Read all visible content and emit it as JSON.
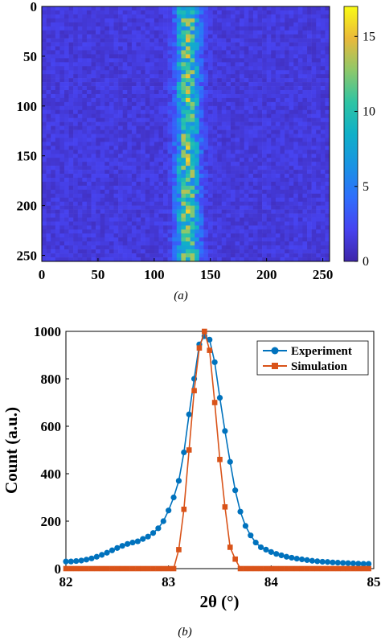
{
  "chart_data": [
    {
      "type": "heatmap",
      "caption": "a",
      "caption_text": "(a)",
      "title": "",
      "xlabel": "",
      "ylabel": "",
      "xlim": [
        0,
        256
      ],
      "ylim": [
        0,
        256
      ],
      "y_axis_reversed": true,
      "x_ticks": [
        "0",
        "50",
        "100",
        "150",
        "200",
        "250"
      ],
      "y_ticks": [
        "0",
        "50",
        "100",
        "150",
        "200",
        "250"
      ],
      "colormap": "parula",
      "colorbar": {
        "min": 0,
        "max": 17,
        "ticks": [
          "0",
          "5",
          "10",
          "15"
        ]
      },
      "grid": false,
      "description_values": {
        "background_level": 1.5,
        "stripe_center_column": 130,
        "stripe_halfwidth_columns": 7,
        "stripe_peak_level": 11
      }
    },
    {
      "type": "line",
      "caption": "b",
      "caption_text": "(b)",
      "title": "",
      "xlabel": "2θ (°)",
      "ylabel": "Count (a.u.)",
      "xlim": [
        82,
        85
      ],
      "ylim": [
        0,
        1000
      ],
      "x_ticks": [
        "82",
        "83",
        "84",
        "85"
      ],
      "y_ticks": [
        "0",
        "200",
        "400",
        "600",
        "800",
        "1000"
      ],
      "grid": false,
      "legend_placement": "top-right",
      "series": [
        {
          "name": "Experiment",
          "color": "#0072BD",
          "marker": "circle",
          "x": [
            82.0,
            82.05,
            82.1,
            82.15,
            82.2,
            82.25,
            82.3,
            82.35,
            82.4,
            82.45,
            82.5,
            82.55,
            82.6,
            82.65,
            82.7,
            82.75,
            82.8,
            82.85,
            82.9,
            82.95,
            83.0,
            83.05,
            83.1,
            83.15,
            83.2,
            83.25,
            83.3,
            83.35,
            83.4,
            83.45,
            83.5,
            83.55,
            83.6,
            83.65,
            83.7,
            83.75,
            83.8,
            83.85,
            83.9,
            83.95,
            84.0,
            84.05,
            84.1,
            84.15,
            84.2,
            84.25,
            84.3,
            84.35,
            84.4,
            84.45,
            84.5,
            84.55,
            84.6,
            84.65,
            84.7,
            84.75,
            84.8,
            84.85,
            84.9,
            84.95
          ],
          "y": [
            30,
            30,
            32,
            34,
            38,
            43,
            50,
            58,
            67,
            77,
            87,
            96,
            104,
            110,
            115,
            125,
            135,
            150,
            170,
            200,
            245,
            300,
            370,
            490,
            650,
            800,
            945,
            980,
            965,
            870,
            720,
            580,
            450,
            330,
            240,
            180,
            140,
            110,
            90,
            80,
            70,
            62,
            56,
            50,
            46,
            42,
            39,
            36,
            33,
            31,
            29,
            28,
            26,
            25,
            24,
            23,
            22,
            21,
            20,
            20
          ]
        },
        {
          "name": "Simulation",
          "color": "#D95319",
          "marker": "square",
          "x": [
            82.0,
            82.05,
            82.1,
            82.15,
            82.2,
            82.25,
            82.3,
            82.35,
            82.4,
            82.45,
            82.5,
            82.55,
            82.6,
            82.65,
            82.7,
            82.75,
            82.8,
            82.85,
            82.9,
            82.95,
            83.0,
            83.05,
            83.1,
            83.15,
            83.2,
            83.25,
            83.3,
            83.35,
            83.4,
            83.45,
            83.5,
            83.55,
            83.6,
            83.65,
            83.7,
            83.75,
            83.8,
            83.85,
            83.9,
            83.95,
            84.0,
            84.05,
            84.1,
            84.15,
            84.2,
            84.25,
            84.3,
            84.35,
            84.4,
            84.45,
            84.5,
            84.55,
            84.6,
            84.65,
            84.7,
            84.75,
            84.8,
            84.85,
            84.9,
            84.95
          ],
          "y": [
            0,
            0,
            0,
            0,
            0,
            0,
            0,
            0,
            0,
            0,
            0,
            0,
            0,
            0,
            0,
            0,
            0,
            0,
            0,
            0,
            0,
            0,
            80,
            250,
            500,
            750,
            930,
            1000,
            920,
            700,
            460,
            260,
            90,
            40,
            0,
            0,
            0,
            0,
            0,
            0,
            0,
            0,
            0,
            0,
            0,
            0,
            0,
            0,
            0,
            0,
            0,
            0,
            0,
            0,
            0,
            0,
            0,
            0,
            0,
            0
          ]
        }
      ]
    }
  ]
}
